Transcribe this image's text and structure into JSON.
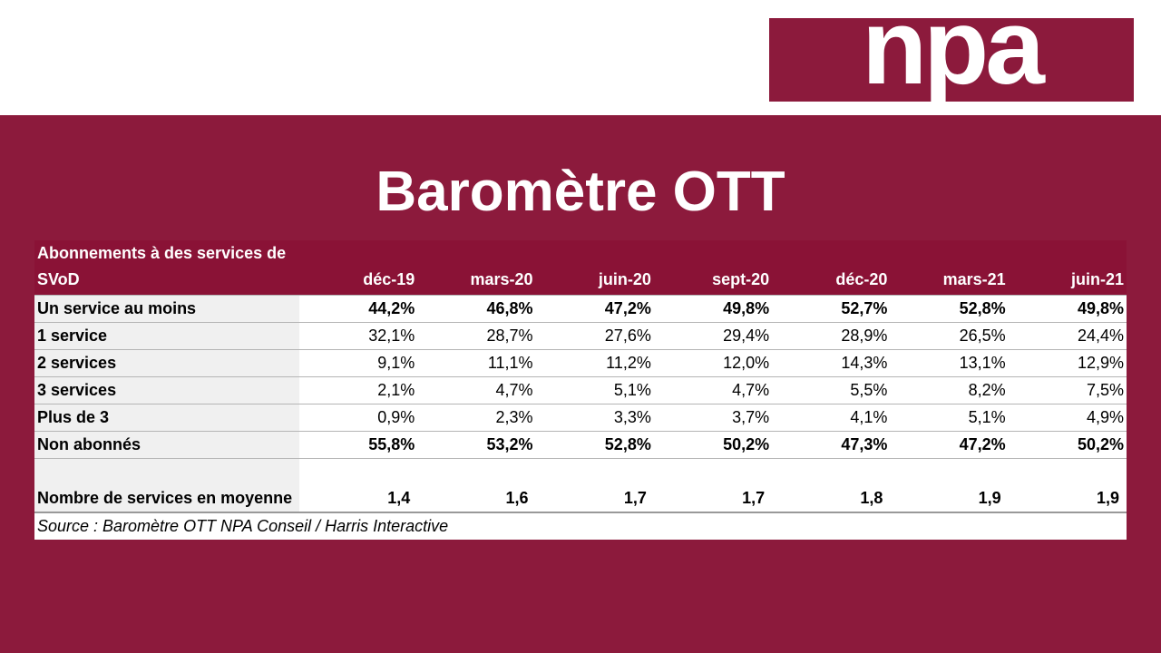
{
  "logo": "npa",
  "title": "Baromètre OTT",
  "table": {
    "header": [
      "Abonnements à des services de SVoD",
      "déc-19",
      "mars-20",
      "juin-20",
      "sept-20",
      "déc-20",
      "mars-21",
      "juin-21"
    ],
    "rows": [
      [
        "Un service au moins",
        "44,2%",
        "46,8%",
        "47,2%",
        "49,8%",
        "52,7%",
        "52,8%",
        "49,8%"
      ],
      [
        "1 service",
        "32,1%",
        "28,7%",
        "27,6%",
        "29,4%",
        "28,9%",
        "26,5%",
        "24,4%"
      ],
      [
        "2 services",
        "9,1%",
        "11,1%",
        "11,2%",
        "12,0%",
        "14,3%",
        "13,1%",
        "12,9%"
      ],
      [
        "3 services",
        "2,1%",
        "4,7%",
        "5,1%",
        "4,7%",
        "5,5%",
        "8,2%",
        "7,5%"
      ],
      [
        "Plus de 3",
        "0,9%",
        "2,3%",
        "3,3%",
        "3,7%",
        "4,1%",
        "5,1%",
        "4,9%"
      ],
      [
        "Non abonnés",
        "55,8%",
        "53,2%",
        "52,8%",
        "50,2%",
        "47,3%",
        "47,2%",
        "50,2%"
      ],
      [
        "Nombre de services en moyenne",
        "1,4",
        "1,6",
        "1,7",
        "1,7",
        "1,8",
        "1,9",
        "1,9"
      ]
    ],
    "source": "Source : Baromètre OTT NPA Conseil / Harris Interactive"
  }
}
